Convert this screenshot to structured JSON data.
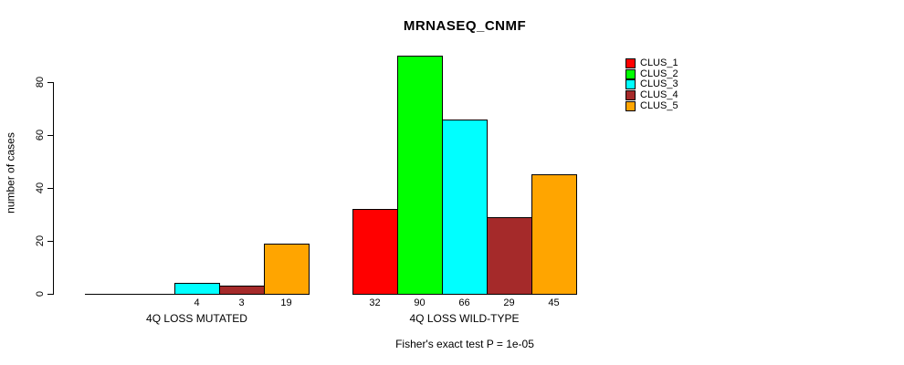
{
  "title": "MRNASEQ_CNMF",
  "chart_data": {
    "type": "bar",
    "title": "MRNASEQ_CNMF",
    "ylabel": "number of cases",
    "xlabel": "",
    "ylim": [
      0,
      90
    ],
    "yticks": [
      0,
      20,
      40,
      60,
      80
    ],
    "grid": false,
    "legend_position": "topright",
    "series_labels": [
      "CLUS_1",
      "CLUS_2",
      "CLUS_3",
      "CLUS_4",
      "CLUS_5"
    ],
    "series_colors": [
      "#FF0000",
      "#00FF00",
      "#00FFFF",
      "#A52A2A",
      "#FFA500"
    ],
    "groups": [
      {
        "label": "4Q LOSS MUTATED",
        "values": [
          0,
          0,
          4,
          3,
          19
        ],
        "bar_labels": [
          "",
          "",
          "4",
          "3",
          "19"
        ]
      },
      {
        "label": "4Q LOSS WILD-TYPE",
        "values": [
          32,
          90,
          66,
          29,
          45
        ],
        "bar_labels": [
          "32",
          "90",
          "66",
          "29",
          "45"
        ]
      }
    ],
    "annotation": "Fisher's exact test P = 1e-05"
  },
  "legend": {
    "entries": [
      {
        "label": "CLUS_1",
        "color": "#FF0000"
      },
      {
        "label": "CLUS_2",
        "color": "#00FF00"
      },
      {
        "label": "CLUS_3",
        "color": "#00FFFF"
      },
      {
        "label": "CLUS_4",
        "color": "#A52A2A"
      },
      {
        "label": "CLUS_5",
        "color": "#FFA500"
      }
    ]
  }
}
